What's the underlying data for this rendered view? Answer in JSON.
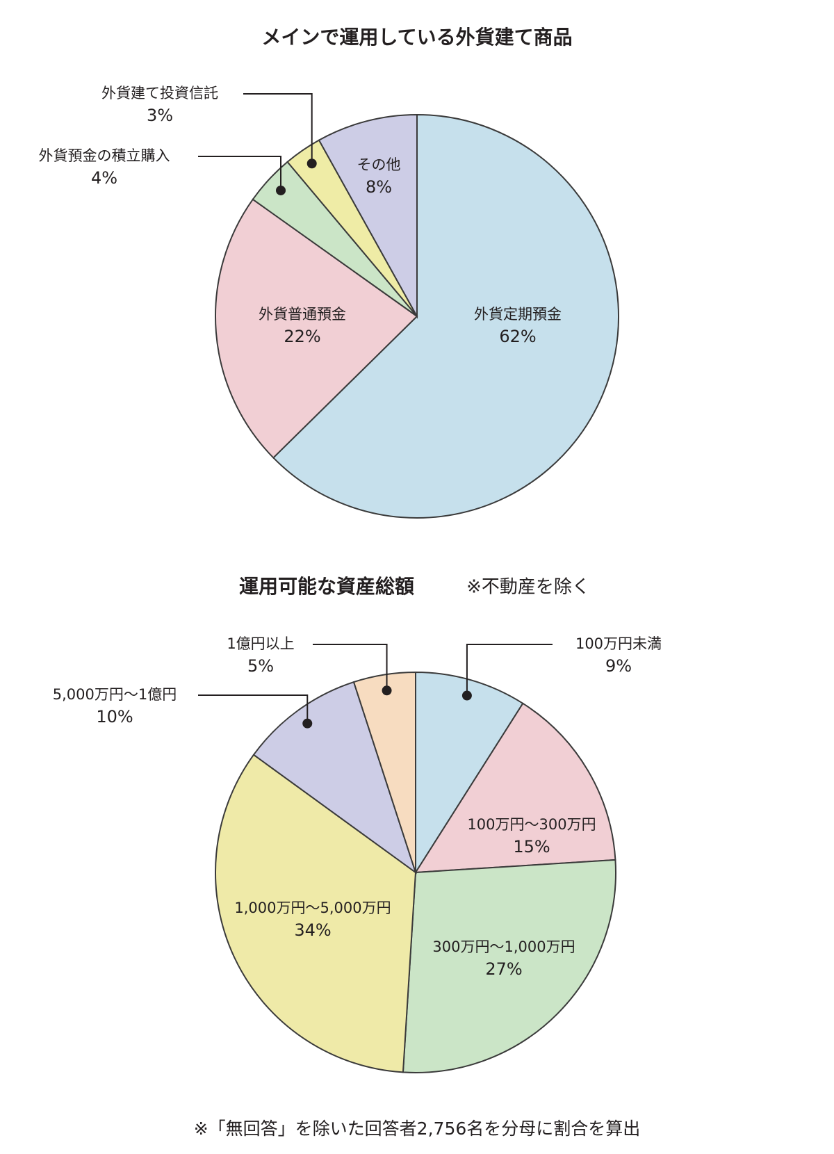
{
  "chart_data": [
    {
      "type": "pie",
      "title": "メインで運用している外貨建て商品",
      "categories": [
        "外貨定期預金",
        "外貨普通預金",
        "外貨預金の積立購入",
        "外貨建て投資信託",
        "その他"
      ],
      "values": [
        62,
        22,
        4,
        3,
        8
      ],
      "value_labels": [
        "62%",
        "22%",
        "4%",
        "3%",
        "8%"
      ],
      "colors": [
        "#c6e0ec",
        "#f1cfd4",
        "#cbe5c7",
        "#efeca6",
        "#cdcde6"
      ]
    },
    {
      "type": "pie",
      "title": "運用可能な資産総額",
      "subtitle": "※不動産を除く",
      "categories": [
        "100万円未満",
        "100万円〜300万円",
        "300万円〜1,000万円",
        "1,000万円〜5,000万円",
        "5,000万円〜1億円",
        "1億円以上"
      ],
      "values": [
        9,
        15,
        27,
        34,
        10,
        5
      ],
      "value_labels": [
        "9%",
        "15%",
        "27%",
        "34%",
        "10%",
        "5%"
      ],
      "colors": [
        "#c6e0ec",
        "#f1cfd4",
        "#cbe5c7",
        "#efeaa8",
        "#cdcde6",
        "#f7dcc0"
      ]
    }
  ],
  "footnote": "※「無回答」を除いた回答者2,756名を分母に割合を算出"
}
